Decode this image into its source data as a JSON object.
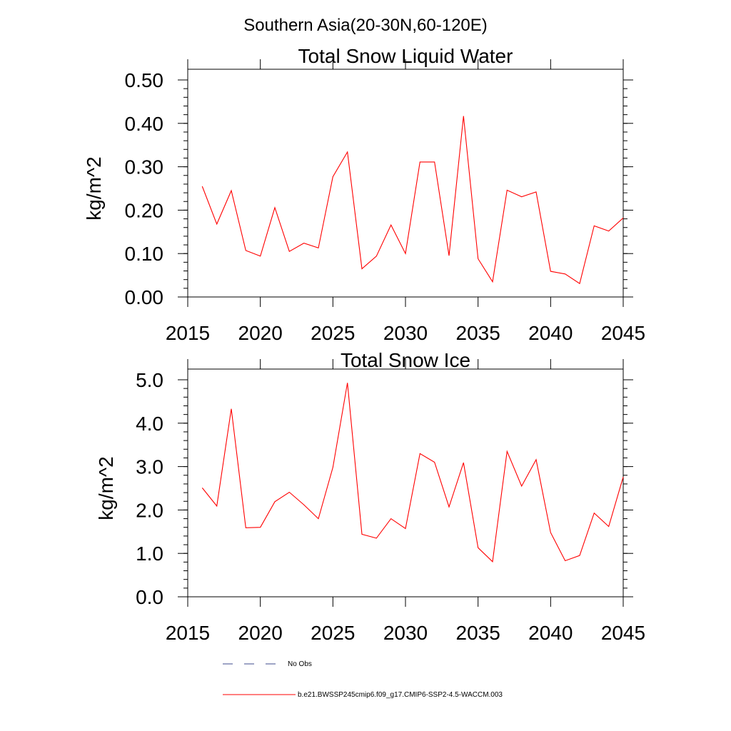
{
  "page_title": "Southern Asia(20-30N,60-120E)",
  "chart_data": [
    {
      "type": "line",
      "title": "Total Snow Liquid Water",
      "xlabel": "",
      "ylabel": "kg/m^2",
      "xlim": [
        2015,
        2045
      ],
      "ylim": [
        0,
        0.5
      ],
      "xticks": [
        2015,
        2020,
        2025,
        2030,
        2035,
        2040,
        2045
      ],
      "xtick_labels": [
        "2015",
        "2020",
        "2025",
        "2030",
        "2035",
        "2040",
        "2045"
      ],
      "yticks": [
        0,
        0.1,
        0.2,
        0.3,
        0.4,
        0.5
      ],
      "ytick_labels": [
        "0.00",
        "0.10",
        "0.20",
        "0.30",
        "0.40",
        "0.50"
      ],
      "grid": false,
      "series": [
        {
          "name": "b.e21.BWSSP245cmip6.f09_g17.CMIP6-SSP2-4.5-WACCM.003",
          "color": "#ff0000",
          "x": [
            2016,
            2017,
            2018,
            2019,
            2020,
            2021,
            2022,
            2023,
            2024,
            2025,
            2026,
            2027,
            2028,
            2029,
            2030,
            2031,
            2032,
            2033,
            2034,
            2035,
            2036,
            2037,
            2038,
            2039,
            2040,
            2041,
            2042,
            2043,
            2044,
            2045
          ],
          "values": [
            0.255,
            0.168,
            0.245,
            0.107,
            0.094,
            0.206,
            0.105,
            0.124,
            0.113,
            0.277,
            0.334,
            0.065,
            0.094,
            0.166,
            0.1,
            0.311,
            0.311,
            0.095,
            0.417,
            0.088,
            0.035,
            0.246,
            0.231,
            0.242,
            0.059,
            0.053,
            0.031,
            0.164,
            0.152,
            0.182
          ]
        }
      ]
    },
    {
      "type": "line",
      "title": "Total Snow Ice",
      "xlabel": "",
      "ylabel": "kg/m^2",
      "xlim": [
        2015,
        2045
      ],
      "ylim": [
        0,
        5
      ],
      "xticks": [
        2015,
        2020,
        2025,
        2030,
        2035,
        2040,
        2045
      ],
      "xtick_labels": [
        "2015",
        "2020",
        "2025",
        "2030",
        "2035",
        "2040",
        "2045"
      ],
      "yticks": [
        0,
        1,
        2,
        3,
        4,
        5
      ],
      "ytick_labels": [
        "0.0",
        "1.0",
        "2.0",
        "3.0",
        "4.0",
        "5.0"
      ],
      "grid": false,
      "series": [
        {
          "name": "b.e21.BWSSP245cmip6.f09_g17.CMIP6-SSP2-4.5-WACCM.003",
          "color": "#ff0000",
          "x": [
            2016,
            2017,
            2018,
            2019,
            2020,
            2021,
            2022,
            2023,
            2024,
            2025,
            2026,
            2027,
            2028,
            2029,
            2030,
            2031,
            2032,
            2033,
            2034,
            2035,
            2036,
            2037,
            2038,
            2039,
            2040,
            2041,
            2042,
            2043,
            2044,
            2045
          ],
          "values": [
            2.51,
            2.09,
            4.33,
            1.59,
            1.6,
            2.19,
            2.41,
            2.12,
            1.8,
            2.98,
            4.93,
            1.44,
            1.35,
            1.8,
            1.57,
            3.3,
            3.1,
            2.07,
            3.09,
            1.13,
            0.81,
            3.35,
            2.55,
            3.16,
            1.48,
            0.83,
            0.95,
            1.93,
            1.62,
            2.76
          ]
        }
      ]
    }
  ],
  "legend": {
    "placement": "bottom",
    "entries": [
      {
        "label": "No Obs",
        "color": "#3c4a8c",
        "style": "dashed"
      },
      {
        "label": "b.e21.BWSSP245cmip6.f09_g17.CMIP6-SSP2-4.5-WACCM.003",
        "color": "#ff0000",
        "style": "solid"
      }
    ]
  }
}
